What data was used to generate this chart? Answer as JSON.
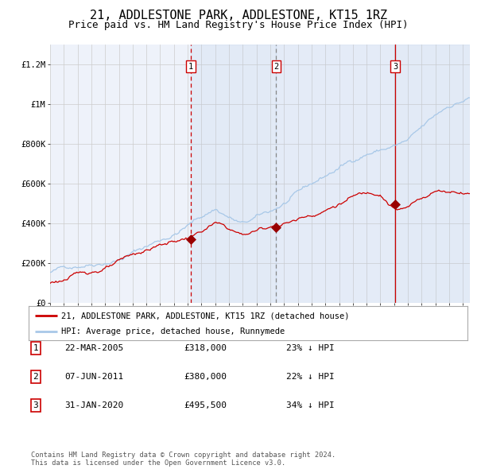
{
  "title": "21, ADDLESTONE PARK, ADDLESTONE, KT15 1RZ",
  "subtitle": "Price paid vs. HM Land Registry's House Price Index (HPI)",
  "title_fontsize": 11,
  "subtitle_fontsize": 9,
  "legend_line1": "21, ADDLESTONE PARK, ADDLESTONE, KT15 1RZ (detached house)",
  "legend_line2": "HPI: Average price, detached house, Runnymede",
  "footer": "Contains HM Land Registry data © Crown copyright and database right 2024.\nThis data is licensed under the Open Government Licence v3.0.",
  "sale_color": "#cc0000",
  "hpi_color": "#a8c8e8",
  "background_color": "#ffffff",
  "plot_bg_color": "#eef2fa",
  "grid_color": "#cccccc",
  "sale_points": [
    {
      "label": "1",
      "date_num": 2005.22,
      "value": 318000
    },
    {
      "label": "2",
      "date_num": 2011.43,
      "value": 380000
    },
    {
      "label": "3",
      "date_num": 2020.08,
      "value": 495500
    }
  ],
  "table_rows": [
    {
      "num": "1",
      "date": "22-MAR-2005",
      "price": "£318,000",
      "pct": "23% ↓ HPI"
    },
    {
      "num": "2",
      "date": "07-JUN-2011",
      "price": "£380,000",
      "pct": "22% ↓ HPI"
    },
    {
      "num": "3",
      "date": "31-JAN-2020",
      "price": "£495,500",
      "pct": "34% ↓ HPI"
    }
  ],
  "ylim": [
    0,
    1300000
  ],
  "xlim_start": 1995.0,
  "xlim_end": 2025.5,
  "yticks": [
    0,
    200000,
    400000,
    600000,
    800000,
    1000000,
    1200000
  ],
  "ytick_labels": [
    "£0",
    "£200K",
    "£400K",
    "£600K",
    "£800K",
    "£1M",
    "£1.2M"
  ],
  "xticks": [
    1995,
    1996,
    1997,
    1998,
    1999,
    2000,
    2001,
    2002,
    2003,
    2004,
    2005,
    2006,
    2007,
    2008,
    2009,
    2010,
    2011,
    2012,
    2013,
    2014,
    2015,
    2016,
    2017,
    2018,
    2019,
    2020,
    2021,
    2022,
    2023,
    2024,
    2025
  ]
}
